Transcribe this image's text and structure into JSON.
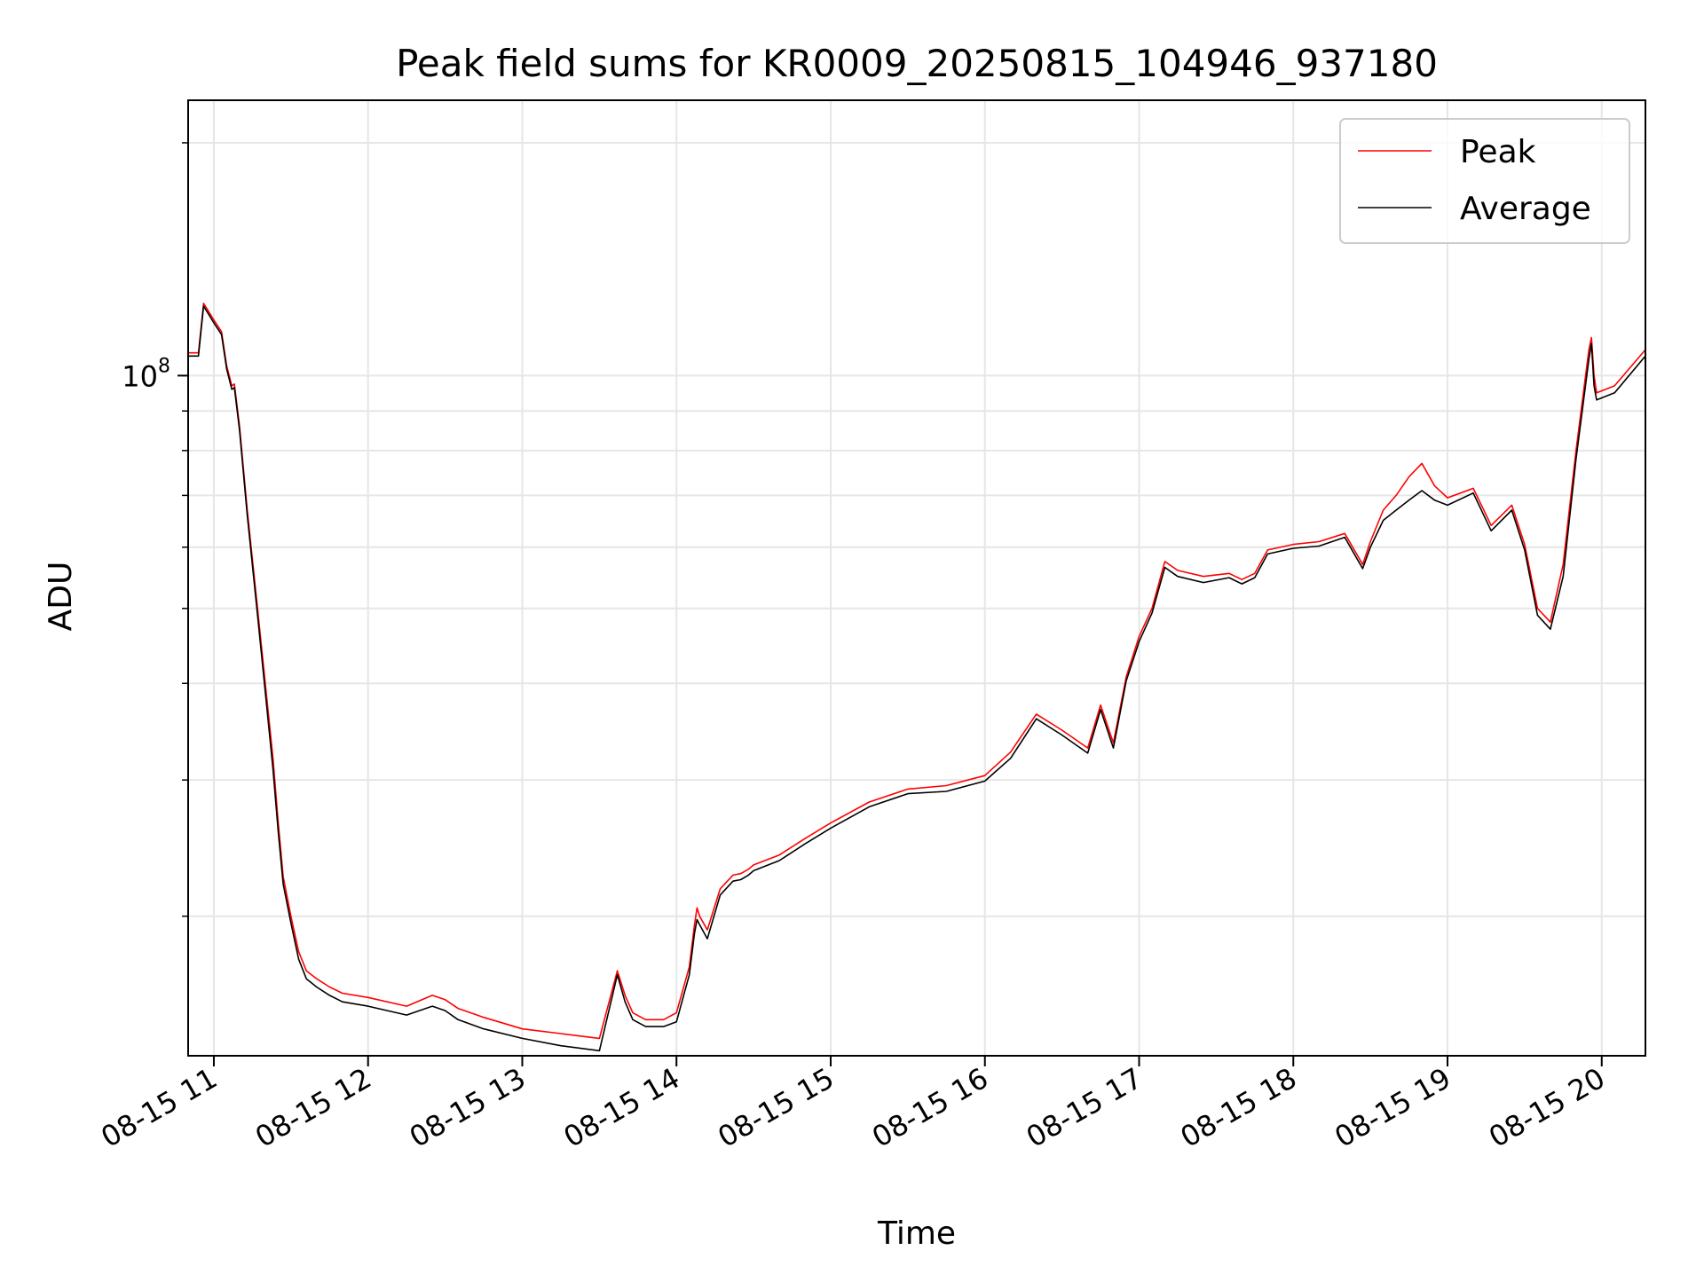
{
  "chart_data": {
    "type": "line",
    "title": "Peak field sums for KR0009_20250815_104946_937180",
    "xlabel": "Time",
    "ylabel": "ADU",
    "y_scale": "log",
    "grid": true,
    "legend_position": "top-right",
    "xlim": [
      "2025-08-15 10:50",
      "2025-08-15 20:17"
    ],
    "ylim": [
      13200000,
      227000000
    ],
    "x_ticks": [
      "08-15 11",
      "08-15 12",
      "08-15 13",
      "08-15 14",
      "08-15 15",
      "08-15 16",
      "08-15 17",
      "08-15 18",
      "08-15 19",
      "08-15 20"
    ],
    "y_ticks": [
      "10^8"
    ],
    "y_tick_text": {
      "base": "10",
      "exponent": "8"
    },
    "series": [
      {
        "name": "Peak",
        "color": "#ff0000",
        "x": [
          "2025-08-15 10:50",
          "2025-08-15 10:54",
          "2025-08-15 10:56",
          "2025-08-15 11:00",
          "2025-08-15 11:03",
          "2025-08-15 11:05",
          "2025-08-15 11:07",
          "2025-08-15 11:08",
          "2025-08-15 11:10",
          "2025-08-15 11:13",
          "2025-08-15 11:17",
          "2025-08-15 11:20",
          "2025-08-15 11:23",
          "2025-08-15 11:25",
          "2025-08-15 11:27",
          "2025-08-15 11:30",
          "2025-08-15 11:33",
          "2025-08-15 11:36",
          "2025-08-15 11:40",
          "2025-08-15 11:45",
          "2025-08-15 11:50",
          "2025-08-15 12:00",
          "2025-08-15 12:15",
          "2025-08-15 12:25",
          "2025-08-15 12:30",
          "2025-08-15 12:35",
          "2025-08-15 12:45",
          "2025-08-15 13:00",
          "2025-08-15 13:15",
          "2025-08-15 13:30",
          "2025-08-15 13:37",
          "2025-08-15 13:40",
          "2025-08-15 13:43",
          "2025-08-15 13:48",
          "2025-08-15 13:55",
          "2025-08-15 14:00",
          "2025-08-15 14:05",
          "2025-08-15 14:07",
          "2025-08-15 14:08",
          "2025-08-15 14:09",
          "2025-08-15 14:12",
          "2025-08-15 14:17",
          "2025-08-15 14:22",
          "2025-08-15 14:25",
          "2025-08-15 14:28",
          "2025-08-15 14:30",
          "2025-08-15 14:40",
          "2025-08-15 14:50",
          "2025-08-15 15:00",
          "2025-08-15 15:15",
          "2025-08-15 15:30",
          "2025-08-15 15:45",
          "2025-08-15 16:00",
          "2025-08-15 16:10",
          "2025-08-15 16:20",
          "2025-08-15 16:30",
          "2025-08-15 16:40",
          "2025-08-15 16:45",
          "2025-08-15 16:50",
          "2025-08-15 16:55",
          "2025-08-15 17:00",
          "2025-08-15 17:05",
          "2025-08-15 17:10",
          "2025-08-15 17:15",
          "2025-08-15 17:25",
          "2025-08-15 17:35",
          "2025-08-15 17:40",
          "2025-08-15 17:45",
          "2025-08-15 17:50",
          "2025-08-15 18:00",
          "2025-08-15 18:10",
          "2025-08-15 18:20",
          "2025-08-15 18:27",
          "2025-08-15 18:30",
          "2025-08-15 18:35",
          "2025-08-15 18:40",
          "2025-08-15 18:45",
          "2025-08-15 18:50",
          "2025-08-15 18:55",
          "2025-08-15 19:00",
          "2025-08-15 19:10",
          "2025-08-15 19:17",
          "2025-08-15 19:25",
          "2025-08-15 19:30",
          "2025-08-15 19:35",
          "2025-08-15 19:40",
          "2025-08-15 19:45",
          "2025-08-15 19:50",
          "2025-08-15 19:55",
          "2025-08-15 19:56",
          "2025-08-15 19:57",
          "2025-08-15 19:58",
          "2025-08-15 20:05",
          "2025-08-15 20:17"
        ],
        "y": [
          107000000,
          107000000,
          124000000,
          118000000,
          114000000,
          103000000,
          97000000,
          97500000,
          86000000,
          67000000,
          50000000,
          40000000,
          32000000,
          26500000,
          22500000,
          20000000,
          18000000,
          17000000,
          16600000,
          16200000,
          15900000,
          15700000,
          15300000,
          15800000,
          15600000,
          15200000,
          14800000,
          14300000,
          14100000,
          13900000,
          17000000,
          15800000,
          15000000,
          14700000,
          14700000,
          15000000,
          17200000,
          19500000,
          20500000,
          20000000,
          19200000,
          21700000,
          22600000,
          22700000,
          23000000,
          23300000,
          24000000,
          25200000,
          26400000,
          28100000,
          29200000,
          29500000,
          30400000,
          32600000,
          36500000,
          34800000,
          33000000,
          37500000,
          33500000,
          40800000,
          46000000,
          50000000,
          57500000,
          56000000,
          55000000,
          55500000,
          54500000,
          55500000,
          59500000,
          60500000,
          61000000,
          62500000,
          57000000,
          61000000,
          67000000,
          70000000,
          74000000,
          77000000,
          72000000,
          69500000,
          71500000,
          64000000,
          68000000,
          60500000,
          50000000,
          48000000,
          57000000,
          80000000,
          108000000,
          112000000,
          100000000,
          95000000,
          97000000,
          108000000
        ]
      },
      {
        "name": "Average",
        "color": "#000000",
        "x": [
          "2025-08-15 10:50",
          "2025-08-15 10:54",
          "2025-08-15 10:56",
          "2025-08-15 11:00",
          "2025-08-15 11:03",
          "2025-08-15 11:05",
          "2025-08-15 11:07",
          "2025-08-15 11:08",
          "2025-08-15 11:10",
          "2025-08-15 11:13",
          "2025-08-15 11:17",
          "2025-08-15 11:20",
          "2025-08-15 11:23",
          "2025-08-15 11:25",
          "2025-08-15 11:27",
          "2025-08-15 11:30",
          "2025-08-15 11:33",
          "2025-08-15 11:36",
          "2025-08-15 11:40",
          "2025-08-15 11:45",
          "2025-08-15 11:50",
          "2025-08-15 12:00",
          "2025-08-15 12:15",
          "2025-08-15 12:25",
          "2025-08-15 12:30",
          "2025-08-15 12:35",
          "2025-08-15 12:45",
          "2025-08-15 13:00",
          "2025-08-15 13:15",
          "2025-08-15 13:30",
          "2025-08-15 13:37",
          "2025-08-15 13:40",
          "2025-08-15 13:43",
          "2025-08-15 13:48",
          "2025-08-15 13:55",
          "2025-08-15 14:00",
          "2025-08-15 14:05",
          "2025-08-15 14:07",
          "2025-08-15 14:08",
          "2025-08-15 14:09",
          "2025-08-15 14:12",
          "2025-08-15 14:17",
          "2025-08-15 14:22",
          "2025-08-15 14:25",
          "2025-08-15 14:28",
          "2025-08-15 14:30",
          "2025-08-15 14:40",
          "2025-08-15 14:50",
          "2025-08-15 15:00",
          "2025-08-15 15:15",
          "2025-08-15 15:30",
          "2025-08-15 15:45",
          "2025-08-15 16:00",
          "2025-08-15 16:10",
          "2025-08-15 16:20",
          "2025-08-15 16:30",
          "2025-08-15 16:40",
          "2025-08-15 16:45",
          "2025-08-15 16:50",
          "2025-08-15 16:55",
          "2025-08-15 17:00",
          "2025-08-15 17:05",
          "2025-08-15 17:10",
          "2025-08-15 17:15",
          "2025-08-15 17:25",
          "2025-08-15 17:35",
          "2025-08-15 17:40",
          "2025-08-15 17:45",
          "2025-08-15 17:50",
          "2025-08-15 18:00",
          "2025-08-15 18:10",
          "2025-08-15 18:20",
          "2025-08-15 18:27",
          "2025-08-15 18:30",
          "2025-08-15 18:35",
          "2025-08-15 18:40",
          "2025-08-15 18:45",
          "2025-08-15 18:50",
          "2025-08-15 18:55",
          "2025-08-15 19:00",
          "2025-08-15 19:10",
          "2025-08-15 19:17",
          "2025-08-15 19:25",
          "2025-08-15 19:30",
          "2025-08-15 19:35",
          "2025-08-15 19:40",
          "2025-08-15 19:45",
          "2025-08-15 19:50",
          "2025-08-15 19:55",
          "2025-08-15 19:56",
          "2025-08-15 19:57",
          "2025-08-15 19:58",
          "2025-08-15 20:05",
          "2025-08-15 20:17"
        ],
        "y": [
          106000000,
          106000000,
          123000000,
          117000000,
          113000000,
          102000000,
          96000000,
          96500000,
          85000000,
          66000000,
          49000000,
          39000000,
          31000000,
          25800000,
          22000000,
          19600000,
          17600000,
          16600000,
          16200000,
          15800000,
          15500000,
          15300000,
          14900000,
          15300000,
          15100000,
          14700000,
          14300000,
          13900000,
          13600000,
          13400000,
          16800000,
          15500000,
          14700000,
          14400000,
          14400000,
          14600000,
          16800000,
          19000000,
          19800000,
          19500000,
          18700000,
          21300000,
          22200000,
          22300000,
          22600000,
          22900000,
          23600000,
          24800000,
          26000000,
          27700000,
          28800000,
          29000000,
          29900000,
          32000000,
          36000000,
          34300000,
          32500000,
          37000000,
          33000000,
          40300000,
          45300000,
          49300000,
          56500000,
          55000000,
          54000000,
          54800000,
          53800000,
          54800000,
          58800000,
          59800000,
          60200000,
          61800000,
          56300000,
          60000000,
          65000000,
          67000000,
          69000000,
          71000000,
          69000000,
          68000000,
          70500000,
          63000000,
          67000000,
          59500000,
          49000000,
          47000000,
          55000000,
          78000000,
          105000000,
          110000000,
          97000000,
          93000000,
          95000000,
          106000000
        ]
      }
    ]
  }
}
